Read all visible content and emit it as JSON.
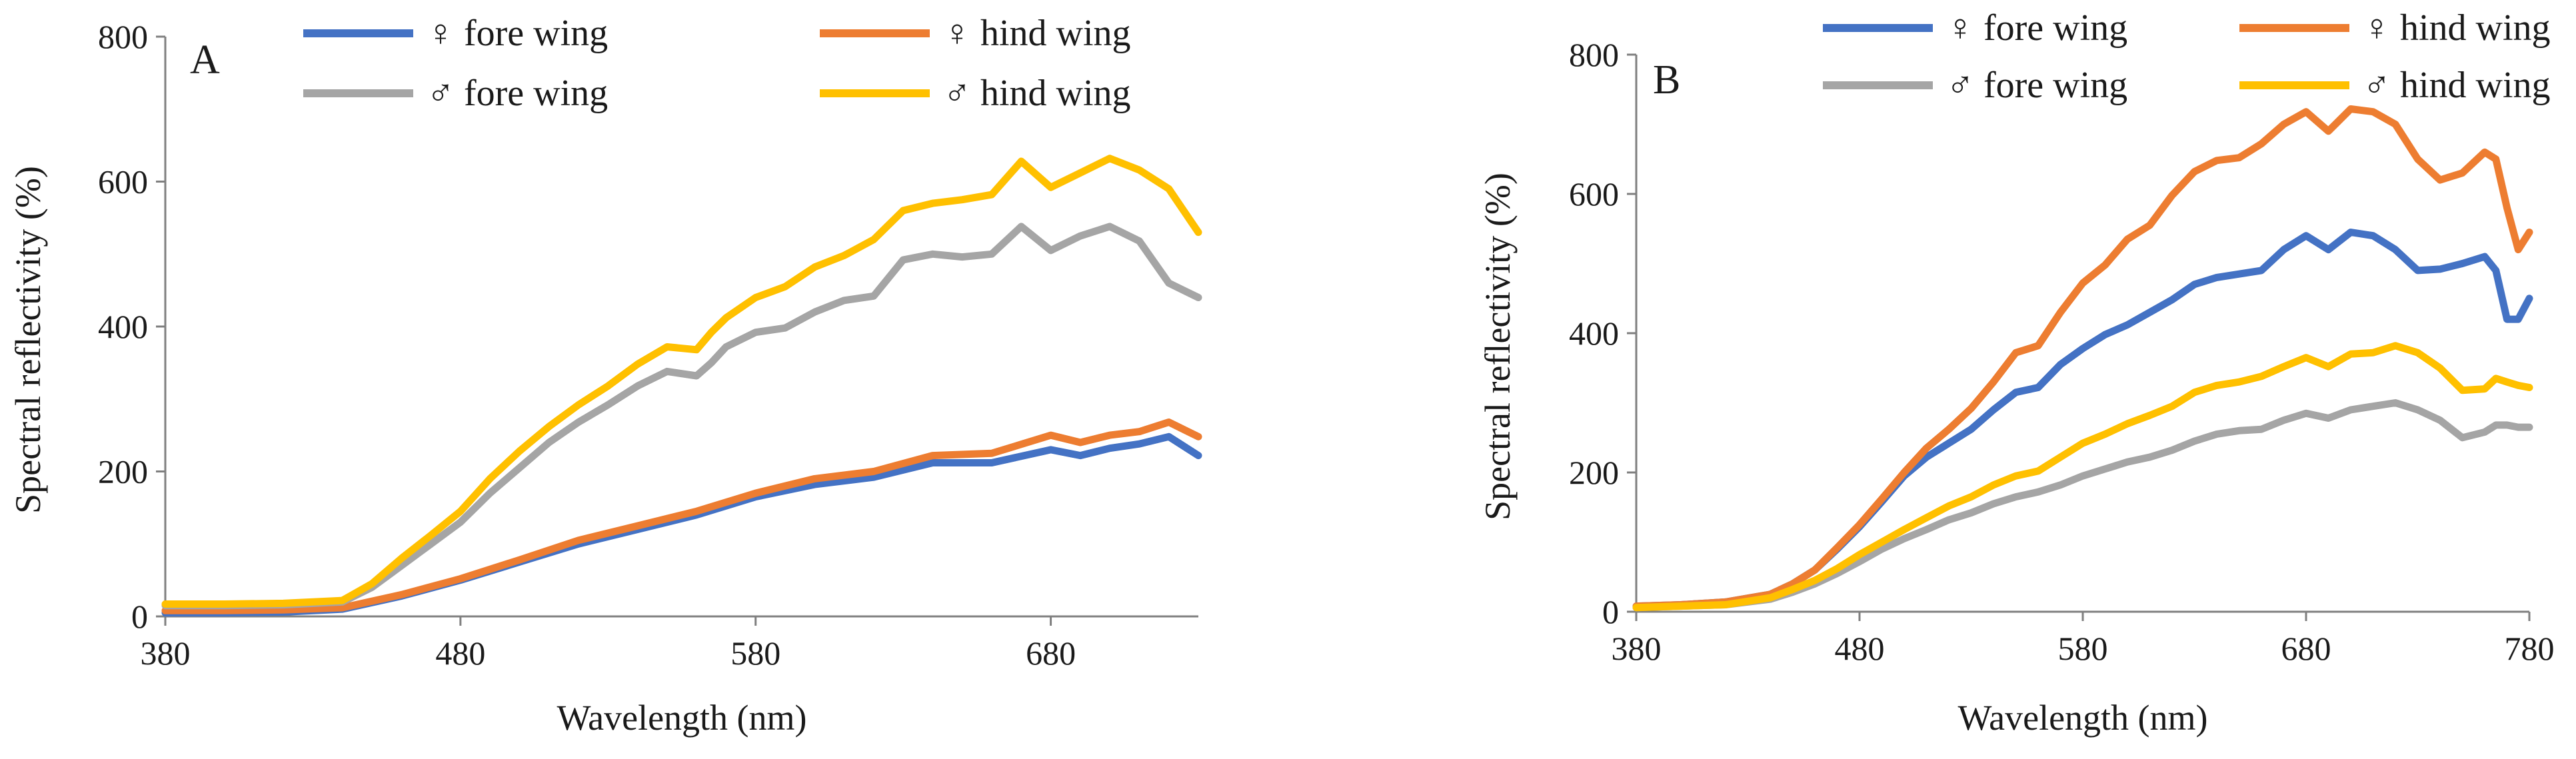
{
  "chart_data": [
    {
      "type": "line",
      "panel_label": "A",
      "xlabel": "Wavelength (nm)",
      "ylabel": "Spectral reflectivity (%)",
      "xlim": [
        380,
        730
      ],
      "ylim": [
        0,
        800
      ],
      "xticks": [
        "380",
        "480",
        "580",
        "680"
      ],
      "yticks": [
        "0",
        "200",
        "400",
        "600",
        "800"
      ],
      "legend_position": "top",
      "series": [
        {
          "name": "♀ fore wing",
          "color": "#4472C4",
          "x": [
            380,
            400,
            420,
            440,
            460,
            480,
            500,
            520,
            540,
            560,
            580,
            600,
            620,
            640,
            660,
            680,
            690,
            700,
            710,
            720,
            730
          ],
          "y": [
            5,
            5,
            6,
            10,
            28,
            50,
            75,
            100,
            120,
            140,
            165,
            182,
            192,
            212,
            212,
            230,
            222,
            232,
            238,
            248,
            222
          ]
        },
        {
          "name": "♀ hind wing",
          "color": "#ED7D31",
          "x": [
            380,
            400,
            420,
            440,
            460,
            480,
            500,
            520,
            540,
            560,
            580,
            600,
            620,
            640,
            660,
            680,
            690,
            700,
            710,
            720,
            730
          ],
          "y": [
            8,
            8,
            9,
            12,
            30,
            52,
            78,
            105,
            125,
            145,
            170,
            190,
            200,
            222,
            225,
            250,
            240,
            250,
            255,
            268,
            248
          ]
        },
        {
          "name": "♂ fore wing",
          "color": "#A5A5A5",
          "x": [
            380,
            400,
            420,
            440,
            450,
            460,
            470,
            480,
            490,
            500,
            510,
            520,
            530,
            540,
            550,
            560,
            565,
            570,
            580,
            590,
            600,
            610,
            620,
            630,
            640,
            650,
            660,
            670,
            680,
            690,
            700,
            710,
            720,
            730
          ],
          "y": [
            15,
            15,
            16,
            20,
            40,
            70,
            100,
            130,
            170,
            205,
            240,
            268,
            292,
            318,
            338,
            332,
            350,
            372,
            392,
            398,
            420,
            436,
            442,
            492,
            500,
            496,
            500,
            538,
            505,
            525,
            538,
            518,
            460,
            440
          ]
        },
        {
          "name": "♂ hind wing",
          "color": "#FFC000",
          "x": [
            380,
            400,
            420,
            440,
            450,
            460,
            470,
            480,
            490,
            500,
            510,
            520,
            530,
            540,
            550,
            560,
            565,
            570,
            580,
            590,
            600,
            610,
            620,
            630,
            640,
            650,
            660,
            670,
            680,
            690,
            700,
            710,
            720,
            730
          ],
          "y": [
            17,
            17,
            18,
            22,
            45,
            80,
            112,
            145,
            190,
            228,
            262,
            292,
            318,
            348,
            372,
            368,
            392,
            412,
            440,
            455,
            482,
            498,
            520,
            560,
            570,
            575,
            582,
            628,
            592,
            612,
            632,
            616,
            590,
            530
          ]
        }
      ]
    },
    {
      "type": "line",
      "panel_label": "B",
      "xlabel": "Wavelength (nm)",
      "ylabel": "Spectral reflectivity (%)",
      "xlim": [
        380,
        780
      ],
      "ylim": [
        0,
        800
      ],
      "xticks": [
        "380",
        "480",
        "580",
        "680",
        "780"
      ],
      "yticks": [
        "0",
        "200",
        "400",
        "600",
        "800"
      ],
      "legend_position": "top",
      "series": [
        {
          "name": "♀ fore wing",
          "color": "#4472C4",
          "x": [
            380,
            400,
            420,
            440,
            450,
            460,
            470,
            480,
            490,
            500,
            510,
            520,
            530,
            540,
            550,
            560,
            570,
            580,
            590,
            600,
            610,
            620,
            630,
            640,
            650,
            660,
            670,
            680,
            690,
            700,
            710,
            720,
            730,
            740,
            750,
            760,
            765,
            770,
            775,
            780
          ],
          "y": [
            8,
            10,
            14,
            25,
            40,
            60,
            90,
            122,
            158,
            195,
            222,
            242,
            262,
            290,
            315,
            322,
            355,
            378,
            398,
            412,
            430,
            448,
            470,
            480,
            485,
            490,
            520,
            540,
            520,
            545,
            540,
            520,
            490,
            492,
            500,
            510,
            490,
            420,
            420,
            450
          ]
        },
        {
          "name": "♀ hind wing",
          "color": "#ED7D31",
          "x": [
            380,
            400,
            420,
            440,
            450,
            460,
            470,
            480,
            490,
            500,
            510,
            520,
            530,
            540,
            550,
            560,
            570,
            580,
            590,
            600,
            610,
            620,
            630,
            640,
            650,
            660,
            670,
            680,
            690,
            700,
            710,
            720,
            730,
            740,
            750,
            760,
            765,
            770,
            775,
            780
          ],
          "y": [
            8,
            10,
            14,
            25,
            40,
            60,
            92,
            125,
            162,
            200,
            235,
            262,
            292,
            330,
            372,
            382,
            430,
            472,
            498,
            535,
            555,
            598,
            632,
            648,
            652,
            672,
            700,
            718,
            690,
            722,
            718,
            700,
            650,
            620,
            630,
            660,
            650,
            580,
            520,
            545
          ]
        },
        {
          "name": "♂ fore wing",
          "color": "#A5A5A5",
          "x": [
            380,
            400,
            420,
            440,
            450,
            460,
            470,
            480,
            490,
            500,
            510,
            520,
            530,
            540,
            550,
            560,
            570,
            580,
            590,
            600,
            610,
            620,
            630,
            640,
            650,
            660,
            670,
            680,
            690,
            700,
            710,
            720,
            730,
            740,
            750,
            760,
            765,
            770,
            775,
            780
          ],
          "y": [
            6,
            8,
            10,
            18,
            28,
            40,
            55,
            72,
            90,
            105,
            118,
            132,
            142,
            155,
            165,
            172,
            182,
            195,
            205,
            215,
            222,
            232,
            245,
            255,
            260,
            262,
            275,
            285,
            278,
            290,
            295,
            300,
            290,
            275,
            250,
            258,
            268,
            268,
            265,
            265
          ]
        },
        {
          "name": "♂ hind wing",
          "color": "#FFC000",
          "x": [
            380,
            400,
            420,
            440,
            450,
            460,
            470,
            480,
            490,
            500,
            510,
            520,
            530,
            540,
            550,
            560,
            570,
            580,
            590,
            600,
            610,
            620,
            630,
            640,
            650,
            660,
            670,
            680,
            690,
            700,
            710,
            720,
            730,
            740,
            750,
            760,
            765,
            770,
            775,
            780
          ],
          "y": [
            6,
            8,
            10,
            20,
            32,
            45,
            62,
            82,
            100,
            118,
            135,
            152,
            165,
            182,
            195,
            202,
            222,
            242,
            255,
            270,
            282,
            295,
            315,
            325,
            330,
            338,
            352,
            365,
            352,
            370,
            372,
            382,
            372,
            350,
            318,
            320,
            335,
            330,
            325,
            322
          ]
        }
      ]
    }
  ]
}
